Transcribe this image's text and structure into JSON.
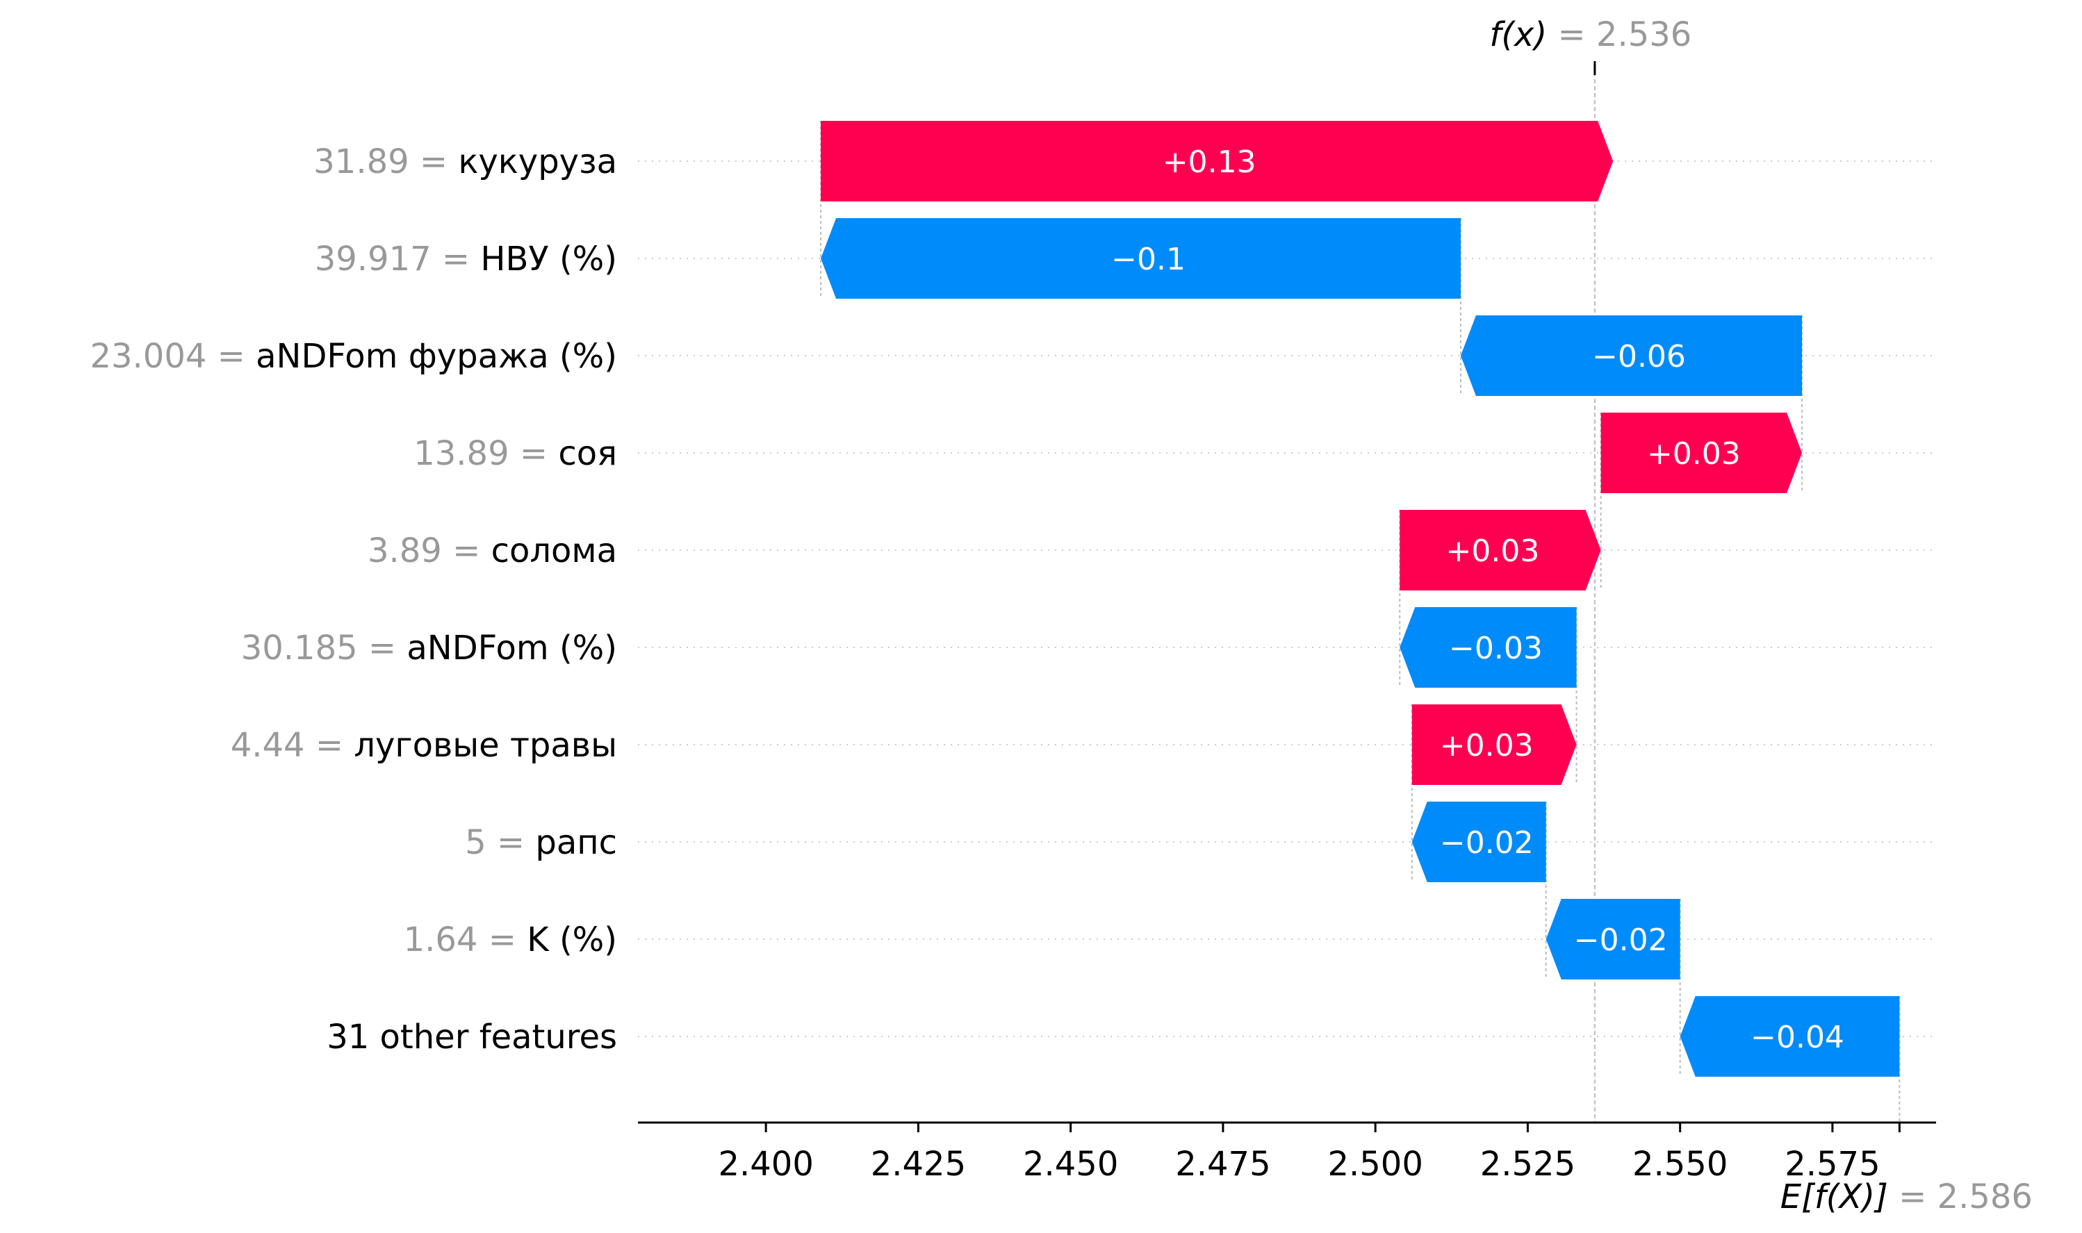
{
  "chart_data": {
    "type": "bar",
    "subtype": "shap-waterfall",
    "final_value": {
      "label": "f(x)",
      "value_text": "= 2.536",
      "value": 2.536
    },
    "base_value": {
      "label": "E[f(X)]",
      "value_text": "= 2.586",
      "value": 2.586
    },
    "xlim": [
      2.379,
      2.592
    ],
    "xticks": [
      2.4,
      2.425,
      2.45,
      2.475,
      2.5,
      2.525,
      2.55,
      2.575
    ],
    "xtick_labels": [
      "2.400",
      "2.425",
      "2.450",
      "2.475",
      "2.500",
      "2.525",
      "2.550",
      "2.575"
    ],
    "grid": false,
    "colors": {
      "positive": "#ff0051",
      "negative": "#008bfb",
      "muted": "#999999",
      "axis": "#000000"
    },
    "features": [
      {
        "value_text": "31.89 =",
        "name": "кукуруза",
        "contribution": 0.13,
        "label": "+0.13"
      },
      {
        "value_text": "39.917 =",
        "name": "НВУ (%)",
        "contribution": -0.105,
        "label": "−0.1"
      },
      {
        "value_text": "23.004 =",
        "name": "aNDFom фуража (%)",
        "contribution": -0.056,
        "label": "−0.06"
      },
      {
        "value_text": "13.89 =",
        "name": "соя",
        "contribution": 0.033,
        "label": "+0.03"
      },
      {
        "value_text": "3.89 =",
        "name": "солома",
        "contribution": 0.033,
        "label": "+0.03"
      },
      {
        "value_text": "30.185 =",
        "name": "aNDFom (%)",
        "contribution": -0.029,
        "label": "−0.03"
      },
      {
        "value_text": "4.44 =",
        "name": "луговые травы",
        "contribution": 0.027,
        "label": "+0.03"
      },
      {
        "value_text": "5 =",
        "name": "рапс",
        "contribution": -0.022,
        "label": "−0.02"
      },
      {
        "value_text": "1.64 =",
        "name": "K (%)",
        "contribution": -0.022,
        "label": "−0.02"
      },
      {
        "value_text": "",
        "name": "31 other features",
        "contribution": -0.036,
        "label": "−0.04"
      }
    ]
  }
}
